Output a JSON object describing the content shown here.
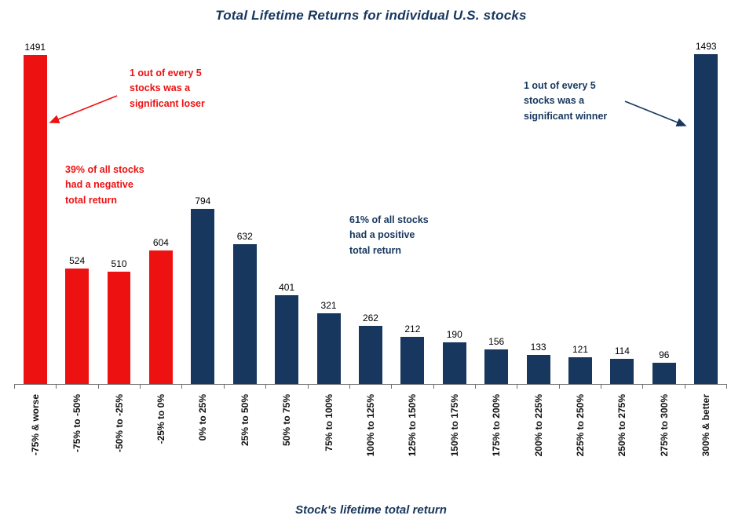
{
  "chart_data": {
    "type": "bar",
    "title": "Total Lifetime Returns for individual U.S. stocks",
    "xlabel": "Stock's lifetime total return",
    "ylabel": "",
    "categories": [
      "-75% & worse",
      "-75% to -50%",
      "-50% to -25%",
      "-25% to 0%",
      "0% to 25%",
      "25% to 50%",
      "50% to 75%",
      "75% to 100%",
      "100% to 125%",
      "125% to 150%",
      "150% to 175%",
      "175% to 200%",
      "200% to 225%",
      "225% to 250%",
      "250% to 275%",
      "275% to 300%",
      "300% & better"
    ],
    "values": [
      1491,
      524,
      510,
      604,
      794,
      632,
      401,
      321,
      262,
      212,
      190,
      156,
      133,
      121,
      114,
      96,
      1493
    ],
    "ylim": [
      0,
      1500
    ],
    "grid": false,
    "legend": "none",
    "value_labels": true,
    "colors": {
      "negative_bars": "#ee1111",
      "positive_bars": "#17375e",
      "negative_count": 4,
      "title_text": "#17375e"
    }
  },
  "annotations": {
    "loser_note": {
      "text": "1 out of every 5\nstocks was a\nsignificant loser",
      "color": "#ee1111"
    },
    "negative_note": {
      "text": "39% of all stocks\nhad a negative\ntotal return",
      "color": "#ee1111"
    },
    "positive_note": {
      "text": "61% of all stocks\nhad a positive\ntotal return",
      "color": "#17375e"
    },
    "winner_note": {
      "text": "1 out of every 5\nstocks was a\nsignificant winner",
      "color": "#17375e"
    }
  }
}
